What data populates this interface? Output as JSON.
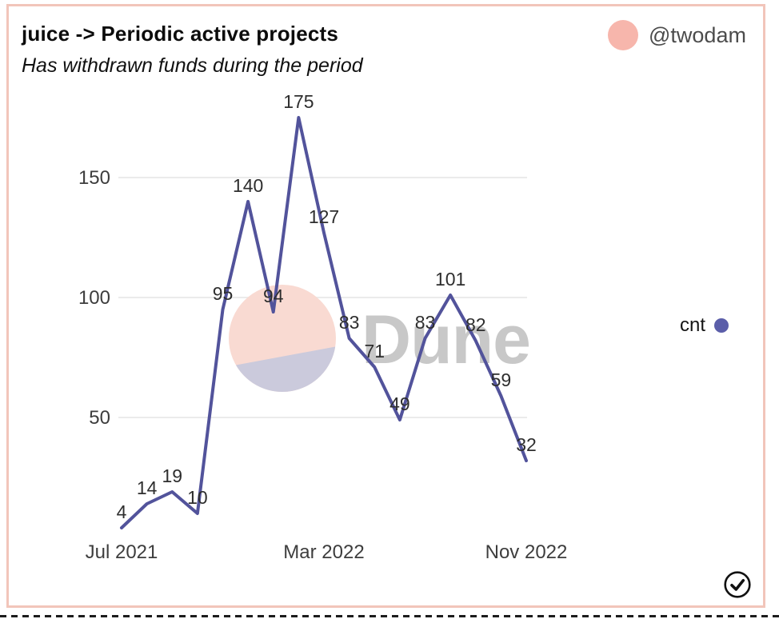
{
  "header": {
    "title": "juice -> Periodic active projects",
    "subtitle": "Has withdrawn funds during the period",
    "author_handle": "@twodam"
  },
  "legend": {
    "label": "cnt"
  },
  "watermark": {
    "text": "Dune"
  },
  "colors": {
    "accent_border": "#f2c5ba",
    "avatar": "#f7b6ac",
    "line": "#52539b",
    "legend_dot": "#5b5ea9",
    "gridline": "#ebebeb",
    "point_label": "#2e2e2e",
    "axis_label": "#3d3d3d",
    "watermark_pink": "#f9dad2",
    "watermark_lavender": "#cbcadc",
    "watermark_text": "#c8c8c8",
    "check_icon": "#111111"
  },
  "chart_data": {
    "type": "line",
    "title": "juice -> Periodic active projects",
    "subtitle": "Has withdrawn funds during the period",
    "x": [
      "Jul 2021",
      "Aug 2021",
      "Sep 2021",
      "Oct 2021",
      "Nov 2021",
      "Dec 2021",
      "Jan 2022",
      "Feb 2022",
      "Mar 2022",
      "Apr 2022",
      "May 2022",
      "Jun 2022",
      "Jul 2022",
      "Aug 2022",
      "Sep 2022",
      "Oct 2022",
      "Nov 2022"
    ],
    "series": [
      {
        "name": "cnt",
        "values": [
          4,
          14,
          19,
          10,
          95,
          140,
          94,
          175,
          127,
          83,
          71,
          49,
          83,
          101,
          82,
          59,
          32
        ]
      }
    ],
    "x_tick_labels": [
      "Jul 2021",
      "Mar 2022",
      "Nov 2022"
    ],
    "x_tick_indices": [
      0,
      8,
      16
    ],
    "y_ticks": [
      50,
      100,
      150
    ],
    "ylim": [
      0,
      185
    ],
    "grid": "horizontal-only",
    "legend_position": "right",
    "point_labels_visible": true
  }
}
